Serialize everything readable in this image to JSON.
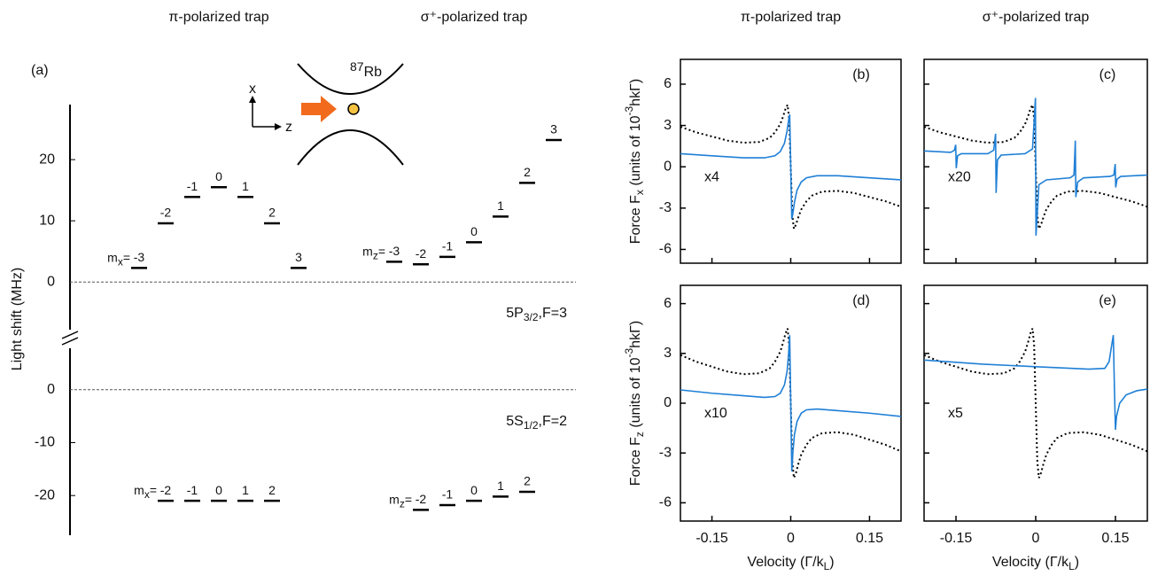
{
  "chart_data": [
    {
      "type": "levels",
      "panel_label": "(a)",
      "ylabel": "Light shift (MHz)",
      "inset": {
        "isotope": "87",
        "element": "Rb",
        "x_axis": "x",
        "z_axis": "z"
      },
      "segments": [
        {
          "ylim": [
            -7.5,
            29
          ],
          "yticks": [
            0,
            10,
            20
          ],
          "state": {
            "main": "5P",
            "sub": "3/2",
            "rest": ",F=3"
          },
          "series": [
            {
              "name": "π-polarized trap",
              "prefix": "m",
              "prefix_sub": "x",
              "equals": "=",
              "categories": [
                "-3",
                "-2",
                "-1",
                "0",
                "1",
                "2",
                "3"
              ],
              "values": [
                2.3,
                9.6,
                13.9,
                15.5,
                13.9,
                9.6,
                2.3
              ]
            },
            {
              "name": "σ⁺-polarized trap",
              "prefix": "m",
              "prefix_sub": "z",
              "equals": "=",
              "categories": [
                "-3",
                "-2",
                "-1",
                "0",
                "1",
                "2",
                "3"
              ],
              "values": [
                3.3,
                2.9,
                4.1,
                6.5,
                10.7,
                16.2,
                23.2
              ]
            }
          ]
        },
        {
          "ylim": [
            -27.5,
            7.5
          ],
          "yticks": [
            0,
            -10,
            -20
          ],
          "state": {
            "main": "5S",
            "sub": "1/2",
            "rest": ",F=2"
          },
          "series": [
            {
              "prefix": "m",
              "prefix_sub": "x",
              "equals": "=",
              "categories": [
                "-2",
                "-1",
                "0",
                "1",
                "2"
              ],
              "values": [
                -21,
                -21,
                -21,
                -21,
                -21
              ]
            },
            {
              "prefix": "m",
              "prefix_sub": "z",
              "equals": "=",
              "categories": [
                "-2",
                "-1",
                "0",
                "1",
                "2"
              ],
              "values": [
                -22.7,
                -21.8,
                -21,
                -20.2,
                -19.3
              ]
            }
          ]
        }
      ]
    },
    {
      "type": "line",
      "panel_label": "(b)",
      "title": "π-polarized trap",
      "ylabel": {
        "text": "Force F",
        "sub": "x",
        "mid": " (units of 10",
        "sup": "-3",
        "end": "hkΓ)"
      },
      "xlim": [
        -0.21,
        0.21
      ],
      "ylim": [
        -7,
        7.8
      ],
      "yticks": [
        -6,
        -3,
        0,
        3,
        6
      ],
      "annotation": "x4",
      "series": [
        {
          "style": "dotted",
          "color": "#000000",
          "x": [
            -0.21,
            -0.18,
            -0.15,
            -0.12,
            -0.09,
            -0.06,
            -0.04,
            -0.03,
            -0.02,
            -0.015,
            -0.01,
            -0.006,
            -0.003,
            0,
            0.003,
            0.006,
            0.01,
            0.015,
            0.02,
            0.03,
            0.04,
            0.06,
            0.09,
            0.12,
            0.15,
            0.18,
            0.21
          ],
          "values": [
            2.9,
            2.5,
            2.2,
            1.9,
            1.75,
            1.8,
            2.1,
            2.5,
            3.1,
            3.6,
            4.2,
            4.5,
            3.5,
            0,
            -3.5,
            -4.5,
            -4.2,
            -3.6,
            -3.1,
            -2.5,
            -2.1,
            -1.8,
            -1.75,
            -1.9,
            -2.2,
            -2.5,
            -2.9
          ]
        },
        {
          "style": "solid",
          "color": "#1f7fd6",
          "x": [
            -0.21,
            -0.15,
            -0.09,
            -0.05,
            -0.03,
            -0.02,
            -0.012,
            -0.007,
            -0.004,
            -0.002,
            0,
            0.002,
            0.004,
            0.007,
            0.012,
            0.02,
            0.03,
            0.05,
            0.09,
            0.15,
            0.21
          ],
          "values": [
            0.95,
            0.8,
            0.65,
            0.65,
            0.8,
            1.1,
            1.7,
            2.6,
            3.4,
            3.8,
            0,
            -3.8,
            -3.4,
            -2.6,
            -1.7,
            -1.1,
            -0.8,
            -0.65,
            -0.65,
            -0.8,
            -0.95
          ]
        }
      ]
    },
    {
      "type": "line",
      "panel_label": "(c)",
      "title": "σ⁺-polarized trap",
      "xlim": [
        -0.21,
        0.21
      ],
      "ylim": [
        -7,
        7.8
      ],
      "annotation": "x20",
      "series": [
        {
          "style": "dotted",
          "color": "#000000",
          "x": [
            -0.21,
            -0.18,
            -0.15,
            -0.12,
            -0.09,
            -0.06,
            -0.04,
            -0.03,
            -0.02,
            -0.015,
            -0.01,
            -0.006,
            -0.003,
            0,
            0.003,
            0.006,
            0.01,
            0.015,
            0.02,
            0.03,
            0.04,
            0.06,
            0.09,
            0.12,
            0.15,
            0.18,
            0.21
          ],
          "values": [
            2.9,
            2.5,
            2.2,
            1.9,
            1.75,
            1.8,
            2.1,
            2.5,
            3.1,
            3.6,
            4.2,
            4.5,
            3.5,
            0,
            -3.5,
            -4.5,
            -4.2,
            -3.6,
            -3.1,
            -2.5,
            -2.1,
            -1.8,
            -1.75,
            -1.9,
            -2.2,
            -2.5,
            -2.9
          ]
        },
        {
          "style": "solid",
          "color": "#1f7fd6",
          "x": [
            -0.21,
            -0.16,
            -0.153,
            -0.1505,
            -0.1495,
            -0.147,
            -0.14,
            -0.09,
            -0.079,
            -0.0755,
            -0.0745,
            -0.072,
            -0.065,
            -0.02,
            -0.006,
            -0.0005,
            0.0005,
            0.006,
            0.02,
            0.065,
            0.072,
            0.0745,
            0.0755,
            0.079,
            0.09,
            0.14,
            0.147,
            0.1495,
            0.1505,
            0.153,
            0.16,
            0.21
          ],
          "values": [
            1.15,
            1.05,
            1.2,
            1.6,
            -0.1,
            0.8,
            0.95,
            0.95,
            1.2,
            2.4,
            -1.9,
            0.5,
            0.85,
            0.95,
            1.3,
            5,
            -5,
            -1.3,
            -0.95,
            -0.8,
            -0.6,
            1.9,
            -2.2,
            -1.1,
            -0.8,
            -0.7,
            -0.6,
            0.2,
            -1.5,
            -0.9,
            -0.7,
            -0.6
          ]
        }
      ]
    },
    {
      "type": "line",
      "panel_label": "(d)",
      "ylabel": {
        "text": "Force F",
        "sub": "z",
        "mid": " (units of 10",
        "sup": "-3",
        "end": "hkΓ)"
      },
      "xlabel": {
        "text": "Velocity (Γ/k",
        "sub": "L",
        "end": ")"
      },
      "xlim": [
        -0.21,
        0.21
      ],
      "ylim": [
        -7.1,
        7.1
      ],
      "xticks": [
        -0.15,
        0,
        0.15
      ],
      "yticks": [
        -6,
        -3,
        0,
        3,
        6
      ],
      "annotation": "x10",
      "series": [
        {
          "style": "dotted",
          "color": "#000000",
          "x": [
            -0.21,
            -0.18,
            -0.15,
            -0.12,
            -0.09,
            -0.06,
            -0.04,
            -0.03,
            -0.02,
            -0.015,
            -0.01,
            -0.006,
            -0.003,
            0,
            0.003,
            0.006,
            0.01,
            0.015,
            0.02,
            0.03,
            0.04,
            0.06,
            0.09,
            0.12,
            0.15,
            0.18,
            0.21
          ],
          "values": [
            2.9,
            2.5,
            2.2,
            1.9,
            1.75,
            1.8,
            2.1,
            2.5,
            3.1,
            3.6,
            4.2,
            4.5,
            3.5,
            0,
            -3.5,
            -4.5,
            -4.2,
            -3.6,
            -3.1,
            -2.5,
            -2.1,
            -1.8,
            -1.75,
            -1.9,
            -2.2,
            -2.5,
            -2.9
          ]
        },
        {
          "style": "solid",
          "color": "#1f7fd6",
          "x": [
            -0.21,
            -0.15,
            -0.09,
            -0.05,
            -0.03,
            -0.02,
            -0.012,
            -0.007,
            -0.004,
            -0.002,
            0,
            0.002,
            0.004,
            0.007,
            0.012,
            0.02,
            0.03,
            0.05,
            0.09,
            0.15,
            0.21
          ],
          "values": [
            0.8,
            0.6,
            0.45,
            0.35,
            0.4,
            0.6,
            1.1,
            1.9,
            3,
            4.1,
            0,
            -4.1,
            -3,
            -1.9,
            -1.1,
            -0.6,
            -0.4,
            -0.35,
            -0.45,
            -0.6,
            -0.8
          ]
        }
      ]
    },
    {
      "type": "line",
      "panel_label": "(e)",
      "xlabel": {
        "text": "Velocity (Γ/k",
        "sub": "L",
        "end": ")"
      },
      "xlim": [
        -0.21,
        0.21
      ],
      "ylim": [
        -7.1,
        7.1
      ],
      "xticks": [
        -0.15,
        0,
        0.15
      ],
      "annotation": "x5",
      "series": [
        {
          "style": "dotted",
          "color": "#000000",
          "x": [
            -0.21,
            -0.18,
            -0.15,
            -0.12,
            -0.09,
            -0.06,
            -0.04,
            -0.03,
            -0.02,
            -0.015,
            -0.01,
            -0.006,
            -0.003,
            0,
            0.003,
            0.006,
            0.01,
            0.015,
            0.02,
            0.03,
            0.04,
            0.06,
            0.09,
            0.12,
            0.15,
            0.18,
            0.21
          ],
          "values": [
            2.9,
            2.5,
            2.2,
            1.9,
            1.75,
            1.8,
            2.1,
            2.5,
            3.1,
            3.6,
            4.2,
            4.5,
            3.5,
            0,
            -3.5,
            -4.5,
            -4.2,
            -3.6,
            -3.1,
            -2.5,
            -2.1,
            -1.8,
            -1.75,
            -1.9,
            -2.2,
            -2.5,
            -2.9
          ]
        },
        {
          "style": "solid",
          "color": "#1f7fd6",
          "x": [
            -0.21,
            -0.1,
            0,
            0.1,
            0.13,
            0.138,
            0.143,
            0.146,
            0.148,
            0.15,
            0.152,
            0.158,
            0.17,
            0.19,
            0.21
          ],
          "values": [
            2.6,
            2.35,
            2.2,
            2.05,
            2.1,
            2.5,
            3.5,
            4.1,
            1,
            -1.6,
            -0.8,
            0,
            0.5,
            0.75,
            0.85
          ]
        }
      ]
    }
  ]
}
